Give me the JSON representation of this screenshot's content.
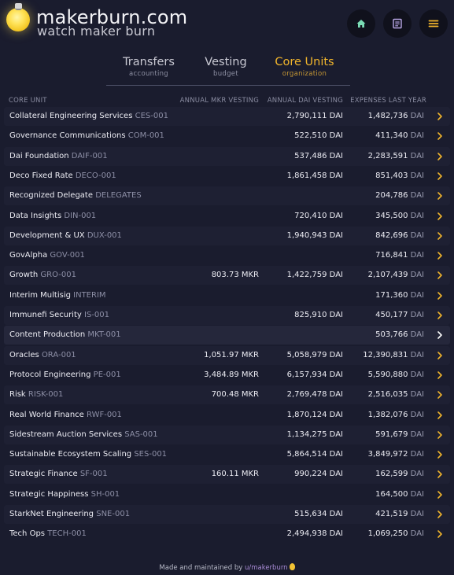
{
  "header": {
    "brand_title": "makerburn.com",
    "brand_subtitle": "watch maker burn",
    "buttons": [
      {
        "name": "home-button",
        "icon": "home-icon",
        "color": "#7bdcb5"
      },
      {
        "name": "docs-button",
        "icon": "document-icon",
        "color": "#b9a7e6"
      },
      {
        "name": "menu-button",
        "icon": "hamburger-icon",
        "color": "#f1b52c"
      }
    ]
  },
  "tabs": [
    {
      "label": "Transfers",
      "sub": "accounting",
      "active": false
    },
    {
      "label": "Vesting",
      "sub": "budget",
      "active": false
    },
    {
      "label": "Core Units",
      "sub": "organization",
      "active": true
    }
  ],
  "table": {
    "headers": {
      "core_unit": "CORE UNIT",
      "mkr": "ANNUAL MKR VESTING",
      "dai": "ANNUAL DAI VESTING",
      "expenses": "EXPENSES LAST YEAR"
    },
    "expense_unit": "DAI",
    "rows": [
      {
        "name": "Collateral Engineering Services",
        "code": "CES-001",
        "mkr": "",
        "dai": "2,790,111 DAI",
        "expenses": "1,482,736"
      },
      {
        "name": "Governance Communications",
        "code": "COM-001",
        "mkr": "",
        "dai": "522,510 DAI",
        "expenses": "411,340"
      },
      {
        "name": "Dai Foundation",
        "code": "DAIF-001",
        "mkr": "",
        "dai": "537,486 DAI",
        "expenses": "2,283,591"
      },
      {
        "name": "Deco Fixed Rate",
        "code": "DECO-001",
        "mkr": "",
        "dai": "1,861,458 DAI",
        "expenses": "851,403"
      },
      {
        "name": "Recognized Delegate",
        "code": "DELEGATES",
        "mkr": "",
        "dai": "",
        "expenses": "204,786"
      },
      {
        "name": "Data Insights",
        "code": "DIN-001",
        "mkr": "",
        "dai": "720,410 DAI",
        "expenses": "345,500"
      },
      {
        "name": "Development & UX",
        "code": "DUX-001",
        "mkr": "",
        "dai": "1,940,943 DAI",
        "expenses": "842,696"
      },
      {
        "name": "GovAlpha",
        "code": "GOV-001",
        "mkr": "",
        "dai": "",
        "expenses": "716,841"
      },
      {
        "name": "Growth",
        "code": "GRO-001",
        "mkr": "803.73 MKR",
        "dai": "1,422,759 DAI",
        "expenses": "2,107,439"
      },
      {
        "name": "Interim Multisig",
        "code": "INTERIM",
        "mkr": "",
        "dai": "",
        "expenses": "171,360"
      },
      {
        "name": "Immunefi Security",
        "code": "IS-001",
        "mkr": "",
        "dai": "825,910 DAI",
        "expenses": "450,177"
      },
      {
        "name": "Content Production",
        "code": "MKT-001",
        "mkr": "",
        "dai": "",
        "expenses": "503,766"
      },
      {
        "name": "Oracles",
        "code": "ORA-001",
        "mkr": "1,051.97 MKR",
        "dai": "5,058,979 DAI",
        "expenses": "12,390,831"
      },
      {
        "name": "Protocol Engineering",
        "code": "PE-001",
        "mkr": "3,484.89 MKR",
        "dai": "6,157,934 DAI",
        "expenses": "5,590,880"
      },
      {
        "name": "Risk",
        "code": "RISK-001",
        "mkr": "700.48 MKR",
        "dai": "2,769,478 DAI",
        "expenses": "2,516,035"
      },
      {
        "name": "Real World Finance",
        "code": "RWF-001",
        "mkr": "",
        "dai": "1,870,124 DAI",
        "expenses": "1,382,076"
      },
      {
        "name": "Sidestream Auction Services",
        "code": "SAS-001",
        "mkr": "",
        "dai": "1,134,275 DAI",
        "expenses": "591,679"
      },
      {
        "name": "Sustainable Ecosystem Scaling",
        "code": "SES-001",
        "mkr": "",
        "dai": "5,864,514 DAI",
        "expenses": "3,849,972"
      },
      {
        "name": "Strategic Finance",
        "code": "SF-001",
        "mkr": "160.11 MKR",
        "dai": "990,224 DAI",
        "expenses": "162,599"
      },
      {
        "name": "Strategic Happiness",
        "code": "SH-001",
        "mkr": "",
        "dai": "",
        "expenses": "164,500"
      },
      {
        "name": "StarkNet Engineering",
        "code": "SNE-001",
        "mkr": "",
        "dai": "515,634 DAI",
        "expenses": "421,519"
      },
      {
        "name": "Tech Ops",
        "code": "TECH-001",
        "mkr": "",
        "dai": "2,494,938 DAI",
        "expenses": "1,069,250"
      }
    ],
    "highlighted_row": 11
  },
  "footer": {
    "text": "Made and maintained by ",
    "link": "u/makerburn"
  },
  "colors": {
    "background": "#1a1c2e",
    "accent": "#f1b52c",
    "chevron": "#f1b52c"
  }
}
